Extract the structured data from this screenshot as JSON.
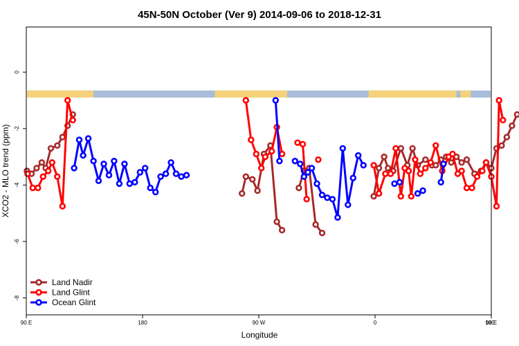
{
  "chart_data": {
    "type": "line",
    "title": "45N-50N October (Ver 9)   2014-09-06 to 2018-12-31",
    "xlabel": "Longitude",
    "ylabel": "XCO2 - MLO trend (ppm)",
    "xlim": [
      90,
      450
    ],
    "ylim": [
      -8.6,
      1.6
    ],
    "x_ticks": [
      {
        "value": 90,
        "label": "90 E"
      },
      {
        "value": 180,
        "label": "180"
      },
      {
        "value": 270,
        "label": "90 W"
      },
      {
        "value": 360,
        "label": "0"
      },
      {
        "value": 450,
        "label": "90 E"
      },
      {
        "value": 540,
        "label": "180"
      }
    ],
    "y_ticks": [
      {
        "value": 0,
        "label": "0"
      },
      {
        "value": -2,
        "label": "-2"
      },
      {
        "value": -4,
        "label": "-4"
      },
      {
        "value": -6,
        "label": "-6"
      },
      {
        "value": -8,
        "label": "-8"
      }
    ],
    "grid": false,
    "legend_position": "bottom-left",
    "surface_band": {
      "y_range": [
        -0.9,
        -0.65
      ],
      "land_color": "#F5D27A",
      "ocean_color": "#A9BCD9",
      "land_segments": [
        [
          90,
          142
        ],
        [
          236,
          292
        ],
        [
          355,
          423
        ],
        [
          426,
          434
        ]
      ]
    },
    "series": [
      {
        "name": "Land Nadir",
        "color": "#A52A2A",
        "points": [
          [
            90.5,
            -3.5
          ],
          [
            94,
            -3.6
          ],
          [
            98,
            -3.4
          ],
          [
            102,
            -3.2
          ],
          [
            105,
            -3.4
          ],
          [
            109,
            -2.7
          ],
          [
            114,
            -2.6
          ],
          [
            118,
            -2.3
          ],
          [
            122,
            -1.9
          ],
          [
            126,
            -1.5
          ],
          null,
          [
            257,
            -4.3
          ],
          [
            260,
            -3.7
          ],
          [
            265,
            -3.8
          ],
          [
            269,
            -4.2
          ],
          [
            274,
            -2.9
          ],
          [
            279,
            -2.6
          ],
          [
            284,
            -5.3
          ],
          [
            288,
            -5.6
          ],
          null,
          [
            301,
            -4.1
          ],
          [
            305,
            -3.5
          ],
          [
            309,
            -3.4
          ],
          [
            314,
            -5.4
          ],
          [
            319,
            -5.7
          ],
          null,
          [
            359,
            -4.4
          ],
          [
            363,
            -3.4
          ],
          [
            367,
            -3.0
          ],
          [
            370,
            -3.4
          ],
          [
            374,
            -3.5
          ],
          [
            380,
            -2.7
          ],
          [
            385,
            -3.3
          ],
          [
            389,
            -2.7
          ],
          [
            393,
            -3.3
          ],
          [
            399,
            -3.1
          ],
          [
            404,
            -3.3
          ],
          [
            407,
            -3.3
          ],
          [
            411,
            -3.1
          ],
          [
            415,
            -3.0
          ],
          [
            419,
            -3.2
          ],
          [
            423,
            -3.0
          ],
          [
            427,
            -3.2
          ],
          [
            431,
            -3.1
          ],
          [
            437,
            -3.6
          ],
          [
            442,
            -3.5
          ],
          [
            446,
            -3.2
          ],
          [
            450,
            -3.4
          ],
          [
            454,
            -2.7
          ],
          [
            458,
            -2.6
          ],
          [
            462,
            -2.3
          ],
          [
            466,
            -1.9
          ],
          [
            470,
            -1.5
          ]
        ]
      },
      {
        "name": "Land Glint",
        "color": "#FF0000",
        "points": [
          [
            91,
            -3.6
          ],
          [
            95,
            -4.1
          ],
          [
            99,
            -4.1
          ],
          [
            103,
            -3.7
          ],
          [
            107,
            -3.5
          ],
          [
            110,
            -3.2
          ],
          [
            114,
            -3.7
          ],
          [
            118,
            -4.75
          ],
          [
            122,
            -1.0
          ],
          [
            126,
            -1.7
          ],
          null,
          [
            260,
            -1.0
          ],
          [
            264,
            -2.4
          ],
          [
            268,
            -2.9
          ],
          [
            272,
            -3.4
          ],
          [
            275,
            -3.0
          ],
          [
            280,
            -2.8
          ],
          [
            284,
            -1.95
          ],
          [
            288,
            -2.9
          ],
          null,
          [
            300,
            -2.5
          ],
          [
            304,
            -2.55
          ],
          [
            307,
            -4.5
          ],
          null,
          [
            316,
            -3.1
          ],
          null,
          [
            359,
            -3.3
          ],
          [
            363,
            -4.3
          ],
          [
            368,
            -3.6
          ],
          [
            372,
            -3.6
          ],
          [
            376,
            -2.7
          ],
          [
            380,
            -4.4
          ],
          [
            383,
            -3.4
          ],
          [
            386,
            -3.5
          ],
          [
            388,
            -4.4
          ],
          [
            391,
            -3.1
          ],
          [
            395,
            -3.6
          ],
          [
            399,
            -3.4
          ],
          [
            403,
            -3.2
          ],
          [
            407,
            -2.6
          ],
          [
            412,
            -3.5
          ],
          [
            417,
            -3.0
          ],
          [
            420,
            -2.9
          ],
          [
            424,
            -3.6
          ],
          [
            427,
            -3.5
          ],
          [
            431,
            -4.1
          ],
          [
            435,
            -4.1
          ],
          [
            439,
            -3.7
          ],
          [
            443,
            -3.5
          ],
          [
            446,
            -3.2
          ],
          [
            450,
            -3.7
          ],
          [
            454,
            -4.75
          ],
          [
            456,
            -1.0
          ],
          [
            459,
            -1.7
          ]
        ]
      },
      {
        "name": "Ocean Glint",
        "color": "#0000FF",
        "points": [
          [
            127,
            -3.4
          ],
          [
            131,
            -2.4
          ],
          [
            134,
            -2.95
          ],
          [
            138,
            -2.35
          ],
          [
            142,
            -3.15
          ],
          [
            146,
            -3.85
          ],
          [
            150,
            -3.25
          ],
          [
            154,
            -3.65
          ],
          [
            158,
            -3.15
          ],
          [
            162,
            -3.95
          ],
          [
            166,
            -3.25
          ],
          [
            170,
            -3.95
          ],
          [
            174,
            -3.9
          ],
          [
            178,
            -3.55
          ],
          [
            182,
            -3.4
          ],
          [
            186,
            -4.1
          ],
          [
            190,
            -4.25
          ],
          [
            194,
            -3.7
          ],
          [
            198,
            -3.6
          ],
          [
            202,
            -3.2
          ],
          [
            206,
            -3.6
          ],
          [
            210,
            -3.7
          ],
          [
            214,
            -3.65
          ],
          null,
          [
            283,
            -1.0
          ],
          [
            286,
            -3.15
          ],
          null,
          [
            298,
            -3.15
          ],
          [
            302,
            -3.25
          ],
          [
            305,
            -3.7
          ],
          [
            308,
            -3.55
          ],
          [
            311,
            -3.4
          ],
          [
            315,
            -3.95
          ],
          [
            319,
            -4.35
          ],
          [
            323,
            -4.45
          ],
          [
            327,
            -4.5
          ],
          [
            331,
            -5.15
          ],
          [
            335,
            -2.7
          ],
          [
            339,
            -4.7
          ],
          [
            343,
            -3.75
          ],
          [
            347,
            -2.95
          ],
          [
            351,
            -3.3
          ],
          null,
          [
            375,
            -3.95
          ],
          [
            379,
            -3.9
          ],
          null,
          [
            393,
            -4.3
          ],
          [
            397,
            -4.2
          ],
          null,
          [
            411,
            -3.9
          ],
          [
            413,
            -3.25
          ]
        ]
      }
    ]
  }
}
